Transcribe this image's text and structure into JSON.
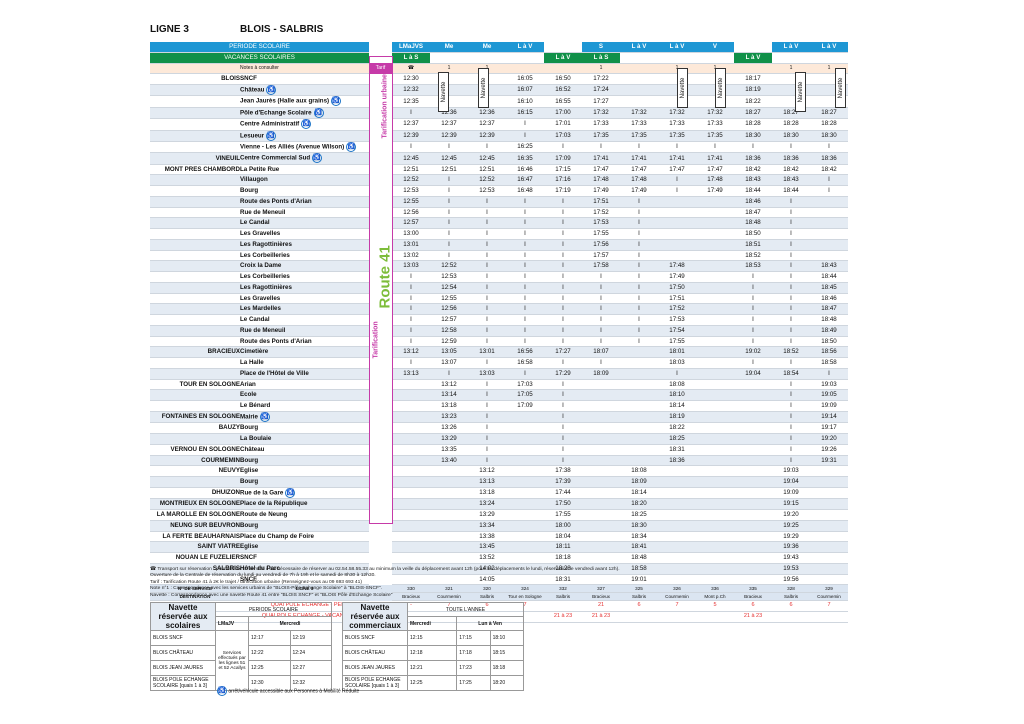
{
  "line": "LIGNE 3",
  "route": "BLOIS - SALBRIS",
  "labels": {
    "periode": "PERIODE SCOLAIRE",
    "vacances": "VACANCES SCOLAIRES",
    "notes": "Notes à consulter",
    "tarif": "Tarif"
  },
  "tarif_urbaine": "Tarification urbaine",
  "tarif_route": "Tarification",
  "route41": "Route 41",
  "route41_sub": "LE RÉSEAU INTERDÉPARTEMENTAL",
  "navette": "Navette",
  "periode_row": [
    "LMaJVS",
    "Me",
    "Me",
    "L à V",
    "",
    "S",
    "L à V",
    "L à V",
    "V",
    "",
    "L à V",
    "L à V"
  ],
  "vacances_row": [
    "L à S",
    "",
    "",
    "",
    "L à V",
    "L à S",
    "",
    "",
    "",
    "L à V",
    "",
    ""
  ],
  "notes_row": [
    "☎",
    "1",
    "1",
    "",
    "",
    "1",
    "",
    "1",
    "1",
    "",
    "1",
    "1"
  ],
  "rows": [
    {
      "com": "BLOIS",
      "arr": "SNCF",
      "a": false,
      "t": [
        "12:30",
        "",
        "",
        "16:05",
        "16:50",
        "17:22",
        "",
        "",
        "",
        "18:17",
        "",
        ""
      ]
    },
    {
      "com": "",
      "arr": "Château",
      "a": true,
      "t": [
        "12:32",
        "",
        "",
        "16:07",
        "16:52",
        "17:24",
        "",
        "",
        "",
        "18:19",
        "",
        ""
      ]
    },
    {
      "com": "",
      "arr": "Jean Jaurès (Halle aux grains)",
      "a": true,
      "t": [
        "12:35",
        "",
        "",
        "16:10",
        "16:55",
        "17:27",
        "",
        "",
        "",
        "18:22",
        "",
        ""
      ]
    },
    {
      "com": "",
      "arr": "Pôle d'Echange Scolaire",
      "a": true,
      "t": [
        "I",
        "12:36",
        "12:36",
        "16:15",
        "17:00",
        "17:32",
        "17:32",
        "17:32",
        "17:32",
        "18:27",
        "18:27",
        "18:27"
      ]
    },
    {
      "com": "",
      "arr": "Centre Administratif",
      "a": true,
      "t": [
        "12:37",
        "12:37",
        "12:37",
        "I",
        "17:01",
        "17:33",
        "17:33",
        "17:33",
        "17:33",
        "18:28",
        "18:28",
        "18:28"
      ]
    },
    {
      "com": "",
      "arr": "Lesueur",
      "a": true,
      "t": [
        "12:39",
        "12:39",
        "12:39",
        "I",
        "17:03",
        "17:35",
        "17:35",
        "17:35",
        "17:35",
        "18:30",
        "18:30",
        "18:30"
      ]
    },
    {
      "com": "",
      "arr": "Vienne - Les Alliés (Avenue Wilson)",
      "a": true,
      "t": [
        "I",
        "I",
        "I",
        "16:25",
        "I",
        "I",
        "I",
        "I",
        "I",
        "I",
        "I",
        "I"
      ]
    },
    {
      "com": "VINEUIL",
      "arr": "Centre Commercial Sud",
      "a": true,
      "t": [
        "12:45",
        "12:45",
        "12:45",
        "16:35",
        "17:09",
        "17:41",
        "17:41",
        "17:41",
        "17:41",
        "18:36",
        "18:36",
        "18:36"
      ]
    },
    {
      "com": "MONT PRES CHAMBORD",
      "arr": "La Petite Rue",
      "a": false,
      "t": [
        "12:51",
        "12:51",
        "12:51",
        "16:46",
        "17:15",
        "17:47",
        "17:47",
        "17:47",
        "17:47",
        "18:42",
        "18:42",
        "18:42"
      ]
    },
    {
      "com": "",
      "arr": "Villaugon",
      "a": false,
      "t": [
        "12:52",
        "I",
        "12:52",
        "16:47",
        "17:16",
        "17:48",
        "17:48",
        "I",
        "17:48",
        "18:43",
        "18:43",
        "I"
      ]
    },
    {
      "com": "",
      "arr": "Bourg",
      "a": false,
      "t": [
        "12:53",
        "I",
        "12:53",
        "16:48",
        "17:19",
        "17:49",
        "17:49",
        "I",
        "17:49",
        "18:44",
        "18:44",
        "I"
      ]
    },
    {
      "com": "",
      "arr": "Route des Ponts d'Arian",
      "a": false,
      "t": [
        "12:55",
        "I",
        "I",
        "I",
        "I",
        "17:51",
        "I",
        "",
        "",
        "18:46",
        "I",
        ""
      ]
    },
    {
      "com": "",
      "arr": "Rue de Meneuil",
      "a": false,
      "t": [
        "12:56",
        "I",
        "I",
        "I",
        "I",
        "17:52",
        "I",
        "",
        "",
        "18:47",
        "I",
        ""
      ]
    },
    {
      "com": "",
      "arr": "Le Candal",
      "a": false,
      "t": [
        "12:57",
        "I",
        "I",
        "I",
        "I",
        "17:53",
        "I",
        "",
        "",
        "18:48",
        "I",
        ""
      ]
    },
    {
      "com": "",
      "arr": "Les Gravelles",
      "a": false,
      "t": [
        "13:00",
        "I",
        "I",
        "I",
        "I",
        "17:55",
        "I",
        "",
        "",
        "18:50",
        "I",
        ""
      ]
    },
    {
      "com": "",
      "arr": "Les Ragottinières",
      "a": false,
      "t": [
        "13:01",
        "I",
        "I",
        "I",
        "I",
        "17:56",
        "I",
        "",
        "",
        "18:51",
        "I",
        ""
      ]
    },
    {
      "com": "",
      "arr": "Les Corbeilleries",
      "a": false,
      "t": [
        "13:02",
        "I",
        "I",
        "I",
        "I",
        "17:57",
        "I",
        "",
        "",
        "18:52",
        "I",
        ""
      ]
    },
    {
      "com": "",
      "arr": "Croix la Dame",
      "a": false,
      "t": [
        "13:03",
        "12:52",
        "I",
        "I",
        "I",
        "17:58",
        "I",
        "17:48",
        "",
        "18:53",
        "I",
        "18:43"
      ]
    },
    {
      "com": "",
      "arr": "Les Corbeilleries",
      "a": false,
      "t": [
        "I",
        "12:53",
        "I",
        "I",
        "I",
        "I",
        "I",
        "17:49",
        "",
        "I",
        "I",
        "18:44"
      ]
    },
    {
      "com": "",
      "arr": "Les Ragottinières",
      "a": false,
      "t": [
        "I",
        "12:54",
        "I",
        "I",
        "I",
        "I",
        "I",
        "17:50",
        "",
        "I",
        "I",
        "18:45"
      ]
    },
    {
      "com": "",
      "arr": "Les Gravelles",
      "a": false,
      "t": [
        "I",
        "12:55",
        "I",
        "I",
        "I",
        "I",
        "I",
        "17:51",
        "",
        "I",
        "I",
        "18:46"
      ]
    },
    {
      "com": "",
      "arr": "Les Mardelles",
      "a": false,
      "t": [
        "I",
        "12:56",
        "I",
        "I",
        "I",
        "I",
        "I",
        "17:52",
        "",
        "I",
        "I",
        "18:47"
      ]
    },
    {
      "com": "",
      "arr": "Le Candal",
      "a": false,
      "t": [
        "I",
        "12:57",
        "I",
        "I",
        "I",
        "I",
        "I",
        "17:53",
        "",
        "I",
        "I",
        "18:48"
      ]
    },
    {
      "com": "",
      "arr": "Rue de Meneuil",
      "a": false,
      "t": [
        "I",
        "12:58",
        "I",
        "I",
        "I",
        "I",
        "I",
        "17:54",
        "",
        "I",
        "I",
        "18:49"
      ]
    },
    {
      "com": "",
      "arr": "Route des Ponts d'Arian",
      "a": false,
      "t": [
        "I",
        "12:59",
        "I",
        "I",
        "I",
        "I",
        "I",
        "17:55",
        "",
        "I",
        "I",
        "18:50"
      ]
    },
    {
      "com": "BRACIEUX",
      "arr": "Cimetière",
      "a": false,
      "t": [
        "13:12",
        "13:05",
        "13:01",
        "16:56",
        "17:27",
        "18:07",
        "",
        "18:01",
        "",
        "19:02",
        "18:52",
        "18:56"
      ]
    },
    {
      "com": "",
      "arr": "La Halle",
      "a": false,
      "t": [
        "I",
        "13:07",
        "I",
        "16:58",
        "I",
        "I",
        "",
        "18:03",
        "",
        "I",
        "I",
        "18:58"
      ]
    },
    {
      "com": "",
      "arr": "Place de l'Hôtel de Ville",
      "a": false,
      "t": [
        "13:13",
        "I",
        "13:03",
        "I",
        "17:29",
        "18:09",
        "",
        "I",
        "",
        "19:04",
        "18:54",
        "I"
      ]
    },
    {
      "com": "TOUR EN SOLOGNE",
      "arr": "Arian",
      "a": false,
      "t": [
        "",
        "13:12",
        "I",
        "17:03",
        "I",
        "",
        "",
        "18:08",
        "",
        "",
        "I",
        "19:03"
      ]
    },
    {
      "com": "",
      "arr": "Ecole",
      "a": false,
      "t": [
        "",
        "13:14",
        "I",
        "17:05",
        "I",
        "",
        "",
        "18:10",
        "",
        "",
        "I",
        "19:05"
      ]
    },
    {
      "com": "",
      "arr": "Le Bénard",
      "a": false,
      "t": [
        "",
        "13:18",
        "I",
        "17:09",
        "I",
        "",
        "",
        "18:14",
        "",
        "",
        "I",
        "19:09"
      ]
    },
    {
      "com": "FONTAINES EN SOLOGNE",
      "arr": "Mairie",
      "a": true,
      "t": [
        "",
        "13:23",
        "I",
        "",
        "I",
        "",
        "",
        "18:19",
        "",
        "",
        "I",
        "19:14"
      ]
    },
    {
      "com": "BAUZY",
      "arr": "Bourg",
      "a": false,
      "t": [
        "",
        "13:26",
        "I",
        "",
        "I",
        "",
        "",
        "18:22",
        "",
        "",
        "I",
        "19:17"
      ]
    },
    {
      "com": "",
      "arr": "La Boulaie",
      "a": false,
      "t": [
        "",
        "13:29",
        "I",
        "",
        "I",
        "",
        "",
        "18:25",
        "",
        "",
        "I",
        "19:20"
      ]
    },
    {
      "com": "VERNOU EN SOLOGNE",
      "arr": "Château",
      "a": false,
      "t": [
        "",
        "13:35",
        "I",
        "",
        "I",
        "",
        "",
        "18:31",
        "",
        "",
        "I",
        "19:26"
      ]
    },
    {
      "com": "COURMEMIN",
      "arr": "Bourg",
      "a": false,
      "t": [
        "",
        "13:40",
        "I",
        "",
        "I",
        "",
        "",
        "18:36",
        "",
        "",
        "I",
        "19:31"
      ]
    },
    {
      "com": "NEUVY",
      "arr": "Eglise",
      "a": false,
      "t": [
        "",
        "",
        "13:12",
        "",
        "17:38",
        "",
        "18:08",
        "",
        "",
        "",
        "19:03",
        ""
      ]
    },
    {
      "com": "",
      "arr": "Bourg",
      "a": false,
      "t": [
        "",
        "",
        "13:13",
        "",
        "17:39",
        "",
        "18:09",
        "",
        "",
        "",
        "19:04",
        ""
      ]
    },
    {
      "com": "DHUIZON",
      "arr": "Rue de la Gare",
      "a": true,
      "t": [
        "",
        "",
        "13:18",
        "",
        "17:44",
        "",
        "18:14",
        "",
        "",
        "",
        "19:09",
        ""
      ]
    },
    {
      "com": "MONTRIEUX EN SOLOGNE",
      "arr": "Place de la République",
      "a": false,
      "t": [
        "",
        "",
        "13:24",
        "",
        "17:50",
        "",
        "18:20",
        "",
        "",
        "",
        "19:15",
        ""
      ]
    },
    {
      "com": "LA MAROLLE EN SOLOGNE",
      "arr": "Route de Neung",
      "a": false,
      "t": [
        "",
        "",
        "13:29",
        "",
        "17:55",
        "",
        "18:25",
        "",
        "",
        "",
        "19:20",
        ""
      ]
    },
    {
      "com": "NEUNG SUR BEUVRON",
      "arr": "Bourg",
      "a": false,
      "t": [
        "",
        "",
        "13:34",
        "",
        "18:00",
        "",
        "18:30",
        "",
        "",
        "",
        "19:25",
        ""
      ]
    },
    {
      "com": "LA FERTE BEAUHARNAIS",
      "arr": "Place du Champ de Foire",
      "a": false,
      "t": [
        "",
        "",
        "13:38",
        "",
        "18:04",
        "",
        "18:34",
        "",
        "",
        "",
        "19:29",
        ""
      ]
    },
    {
      "com": "SAINT VIATRE",
      "arr": "Eglise",
      "a": false,
      "t": [
        "",
        "",
        "13:45",
        "",
        "18:11",
        "",
        "18:41",
        "",
        "",
        "",
        "19:36",
        ""
      ]
    },
    {
      "com": "NOUAN LE FUZELIER",
      "arr": "SNCF",
      "a": false,
      "t": [
        "",
        "",
        "13:52",
        "",
        "18:18",
        "",
        "18:48",
        "",
        "",
        "",
        "19:43",
        ""
      ]
    },
    {
      "com": "SALBRIS",
      "arr": "Hôtel du Parc",
      "a": false,
      "t": [
        "",
        "",
        "14:02",
        "",
        "18:28",
        "",
        "18:58",
        "",
        "",
        "",
        "19:53",
        ""
      ]
    },
    {
      "com": "",
      "arr": "SNCF",
      "a": false,
      "t": [
        "",
        "",
        "14:05",
        "",
        "18:31",
        "",
        "19:01",
        "",
        "",
        "",
        "19:56",
        ""
      ]
    }
  ],
  "service_label": "N° DE SERVICE",
  "destination_label": "DESTINATION",
  "ligne3_label": "LIGNE 3",
  "services": [
    "330",
    "321",
    "320",
    "324",
    "332",
    "327",
    "325",
    "326",
    "336",
    "335",
    "328",
    "329"
  ],
  "destinations": [
    "Bracieux",
    "Courmemin",
    "Salbris",
    "Tour en Sologne",
    "Salbris",
    "Bracieux",
    "Salbris",
    "Courmemin",
    "Mont p.Ch",
    "Bracieux",
    "Salbris",
    "Courmemin"
  ],
  "quai_periode": "QUAI POLE ECHANGE - PERIODE SCOLAIRE",
  "quai_vacances": "QUAI POLE ECHANGE - VACANCES SCOLAIRES",
  "quai_periode_vals": [
    "-",
    "7",
    "6",
    "7",
    "",
    "21",
    "6",
    "7",
    "5",
    "6",
    "6",
    "7"
  ],
  "quai_vacances_vals": [
    "",
    "",
    "",
    "",
    "21 à 23",
    "21 à 23",
    "",
    "",
    "",
    "21 à 23",
    "",
    ""
  ],
  "notes": [
    "☎ Transport sur réservation : pour utiliser ce service il est nécessaire de réserver au 02.54.58.55.33 au minimum la veille du déplacement avant 12h (pour les déplacements le lundi, réservation le vendredi avant 12h).",
    "Ouverture de la Centrale de réservation du lundi au vendredi de 7h à 19h et le samedi de 8h30 à 12h30.",
    "Tarif : Tarification Route 41 à 2€ le trajet / tarification urbaine (Renseignez-vous au 09 693 693 41)",
    "Note n°1 : Correspondance avec les services urbains de \"BLOIS-Pôle Echange Scolaire\" à \"BLOIS-SNCF\".",
    "Navette : Correspondance avec une navette Route 41 entre \"BLOIS SNCF\" et \"BLOIS Pôle d'Echange Scolaire\""
  ],
  "nav1": {
    "title": "Navette réservée aux scolaires",
    "period": "PERIODE SCOLAIRE",
    "c1": "LMaJV",
    "c2": "Mercredi",
    "services_note": "Services effectués par les lignes 51 et 52 Acallys",
    "rows": [
      [
        "BLOIS SNCF",
        "12:17",
        "12:19"
      ],
      [
        "BLOIS CHÂTEAU",
        "12:22",
        "12:24"
      ],
      [
        "BLOIS JEAN JAURES",
        "12:25",
        "12:27"
      ],
      [
        "BLOIS POLE ECHANGE SCOLAIRE [quais 1 à 3]",
        "12:30",
        "12:32"
      ]
    ]
  },
  "nav2": {
    "title": "Navette réservée aux commerciaux",
    "period": "TOUTE L'ANNEE",
    "c1": "Mercredi",
    "c2": "Lun à Ven",
    "rows": [
      [
        "BLOIS SNCF",
        "12:15",
        "17:15",
        "18:10"
      ],
      [
        "BLOIS CHÂTEAU",
        "12:18",
        "17:18",
        "18:15"
      ],
      [
        "BLOIS JEAN JAURES",
        "12:21",
        "17:23",
        "18:18"
      ],
      [
        "BLOIS POLE ECHANGE SCOLAIRE [quais 1 à 3]",
        "12:25",
        "17:25",
        "18:20"
      ]
    ]
  },
  "legend_access": "arrêt/véhicule accessible aux Personnes à Mobilité Réduite"
}
